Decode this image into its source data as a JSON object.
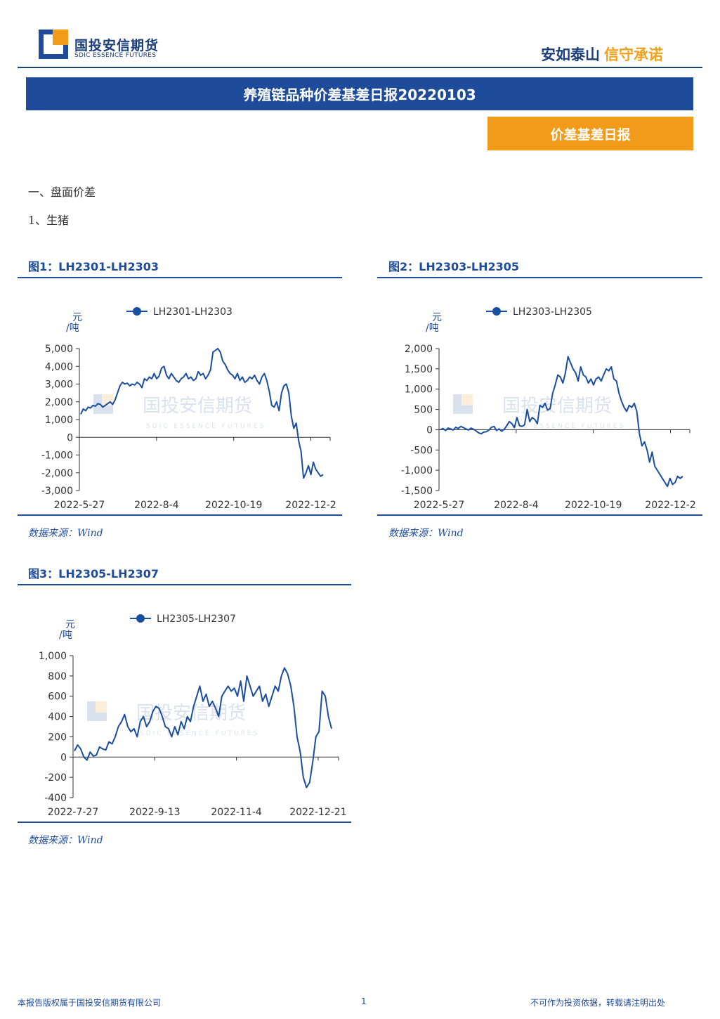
{
  "header": {
    "logo_cn": "国投安信期货",
    "logo_en": "SDIC ESSENCE FUTURES",
    "slogan_a": "安如泰山",
    "slogan_b": "信守承诺"
  },
  "title": "养殖链品种价差基差日报20220103",
  "tag": "价差基差日报",
  "sections": {
    "s1": "一、盘面价差",
    "s1_1": "1、生猪"
  },
  "watermark": {
    "cn": "国投安信期货",
    "en": "SDIC ESSENCE FUTURES"
  },
  "figures": [
    {
      "title": "图1：LH2301-LH2303",
      "source": "数据来源：Wind"
    },
    {
      "title": "图2：LH2303-LH2305",
      "source": "数据来源：Wind"
    },
    {
      "title": "图3：LH2305-LH2307",
      "source": "数据来源：Wind"
    }
  ],
  "colors": {
    "brand_blue": "#1e4b9a",
    "accent_orange": "#f29a1a",
    "line": "#1a4ea1"
  },
  "chart_data": [
    {
      "type": "line",
      "unit": "元/吨",
      "series": [
        {
          "name": "LH2301-LH2303",
          "values": [
            1300,
            1600,
            1500,
            1700,
            1650,
            1800,
            1750,
            1900,
            1850,
            1700,
            1800,
            1900,
            2000,
            1850,
            2100,
            2500,
            2900,
            3100,
            3000,
            3050,
            2900,
            3000,
            2950,
            3100,
            3000,
            2800,
            3300,
            3200,
            3400,
            3300,
            3600,
            3300,
            3450,
            3900,
            4000,
            3500,
            3300,
            3600,
            3400,
            3200,
            3100,
            3300,
            3400,
            3600,
            3300,
            3400,
            3200,
            3300,
            3700,
            3500,
            3600,
            3300,
            3500,
            3800,
            4800,
            4900,
            5000,
            4800,
            4300,
            4100,
            3800,
            3600,
            3500,
            3300,
            3600,
            3200,
            3400,
            3100,
            3200,
            3400,
            3300,
            3500,
            3200,
            3000,
            3400,
            3600,
            3200,
            2600,
            1800,
            1700,
            2000,
            1500,
            2500,
            2900,
            3000,
            2500,
            1200,
            500,
            800,
            -200,
            -800,
            -2300,
            -2000,
            -1600,
            -2100,
            -1400,
            -1800,
            -2000,
            -2200,
            -2100
          ]
        }
      ],
      "x_ticks": [
        "2022-5-27",
        "2022-8-4",
        "2022-10-19",
        "2022-12-2"
      ],
      "y_ticks": [
        "5,000",
        "4,000",
        "3,000",
        "2,000",
        "1,000",
        "0",
        "-1,000",
        "-2,000",
        "-3,000"
      ],
      "ylim": [
        -3000,
        5000
      ]
    },
    {
      "type": "line",
      "unit": "元/吨",
      "series": [
        {
          "name": "LH2303-LH2305",
          "values": [
            0,
            30,
            -20,
            40,
            20,
            -10,
            60,
            30,
            80,
            50,
            20,
            -10,
            40,
            10,
            -30,
            -80,
            -100,
            -60,
            -50,
            -10,
            60,
            80,
            -20,
            20,
            -40,
            10,
            100,
            200,
            150,
            50,
            300,
            100,
            80,
            120,
            500,
            200,
            300,
            250,
            150,
            600,
            550,
            650,
            480,
            520,
            900,
            1100,
            1350,
            1300,
            1150,
            1400,
            1800,
            1650,
            1500,
            1400,
            1200,
            1550,
            1350,
            1300,
            1150,
            1250,
            1100,
            1250,
            1300,
            1200,
            1350,
            1500,
            1450,
            1550,
            1250,
            1200,
            900,
            700,
            550,
            450,
            600,
            550,
            650,
            450,
            -100,
            -400,
            -300,
            -500,
            -800,
            -550,
            -900,
            -1000,
            -1100,
            -1200,
            -1300,
            -1400,
            -1200,
            -1350,
            -1300,
            -1150,
            -1200,
            -1150
          ]
        }
      ],
      "x_ticks": [
        "2022-5-27",
        "2022-8-4",
        "2022-10-19",
        "2022-12-2"
      ],
      "y_ticks": [
        "2,000",
        "1,500",
        "1,000",
        "500",
        "0",
        "-500",
        "-1,000",
        "-1,500"
      ],
      "ylim": [
        -1500,
        2000
      ]
    },
    {
      "type": "line",
      "unit": "元/吨",
      "series": [
        {
          "name": "LH2305-LH2307",
          "values": [
            60,
            120,
            80,
            0,
            -30,
            50,
            10,
            20,
            100,
            80,
            70,
            150,
            130,
            200,
            300,
            350,
            420,
            300,
            250,
            280,
            200,
            350,
            400,
            300,
            350,
            450,
            500,
            480,
            400,
            300,
            280,
            200,
            300,
            220,
            350,
            280,
            400,
            350,
            500,
            600,
            700,
            550,
            620,
            500,
            550,
            480,
            400,
            600,
            650,
            700,
            650,
            680,
            600,
            750,
            550,
            800,
            700,
            600,
            650,
            700,
            550,
            620,
            500,
            600,
            700,
            650,
            800,
            880,
            820,
            700,
            500,
            200,
            50,
            -200,
            -300,
            -250,
            -50,
            200,
            250,
            650,
            600,
            400,
            280
          ]
        }
      ],
      "x_ticks": [
        "2022-7-27",
        "2022-9-13",
        "2022-11-4",
        "2022-12-21"
      ],
      "y_ticks": [
        "1,000",
        "800",
        "600",
        "400",
        "200",
        "0",
        "-200",
        "-400"
      ],
      "ylim": [
        -400,
        1000
      ]
    }
  ],
  "footer": {
    "left": "本报告版权属于国投安信期货有限公司",
    "page": "1",
    "right": "不可作为投资依据，转载请注明出处"
  }
}
